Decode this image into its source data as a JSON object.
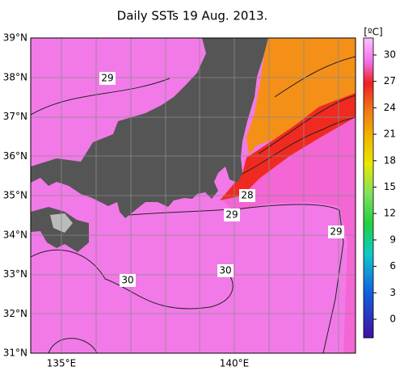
{
  "title": "Daily SSTs 19 Aug. 2013.",
  "latitude_labels": [
    "39°N",
    "38°N",
    "37°N",
    "36°N",
    "35°N",
    "34°N",
    "33°N",
    "32°N",
    "31°N"
  ],
  "longitude_labels": [
    "135°E",
    "140°E"
  ],
  "colorbar": {
    "unit": "[ºC]",
    "ticks": [
      0,
      3,
      6,
      9,
      12,
      15,
      18,
      21,
      24,
      27,
      30
    ]
  },
  "contour_labels": [
    "29",
    "30",
    "30",
    "29",
    "28",
    "29"
  ]
}
